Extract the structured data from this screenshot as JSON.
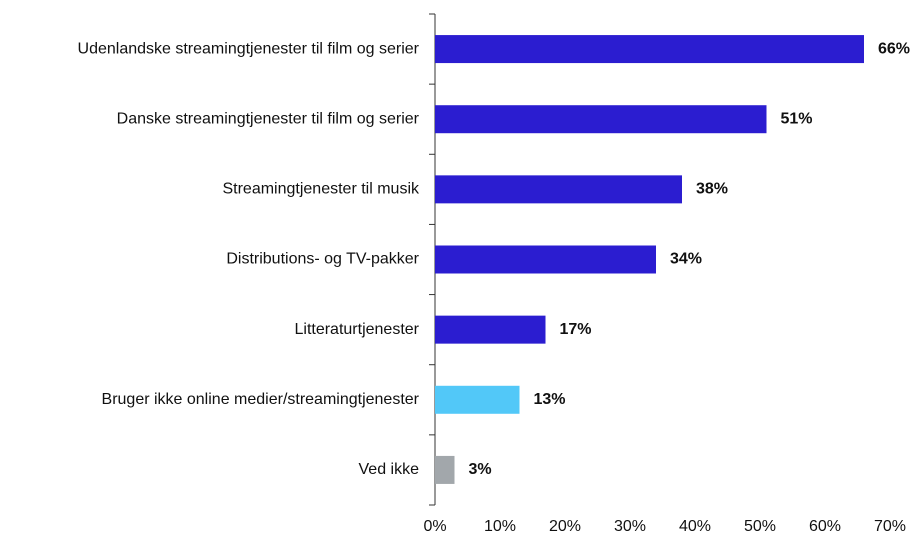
{
  "chart_data": {
    "type": "hbar",
    "categories": [
      "Udenlandske streamingtjenester til film og serier",
      "Danske streamingtjenester til film og serier",
      "Streamingtjenester til musik",
      "Distributions- og TV-pakker",
      "Litteraturtjenester",
      "Bruger ikke online medier/streamingtjenester",
      "Ved ikke"
    ],
    "values": [
      66,
      51,
      38,
      34,
      17,
      13,
      3
    ],
    "value_labels": [
      "66%",
      "51%",
      "38%",
      "34%",
      "17%",
      "13%",
      "3%"
    ],
    "colors": [
      "#2b1dd0",
      "#2b1dd0",
      "#2b1dd0",
      "#2b1dd0",
      "#2b1dd0",
      "#52c8f8",
      "#a2a7ab"
    ],
    "xlim": [
      0,
      70
    ],
    "xticks": [
      {
        "value": 0,
        "label": "0%"
      },
      {
        "value": 10,
        "label": "10%"
      },
      {
        "value": 20,
        "label": "20%"
      },
      {
        "value": 30,
        "label": "30%"
      },
      {
        "value": 40,
        "label": "40%"
      },
      {
        "value": 50,
        "label": "50%"
      },
      {
        "value": 60,
        "label": "60%"
      },
      {
        "value": 70,
        "label": "70%"
      }
    ]
  }
}
